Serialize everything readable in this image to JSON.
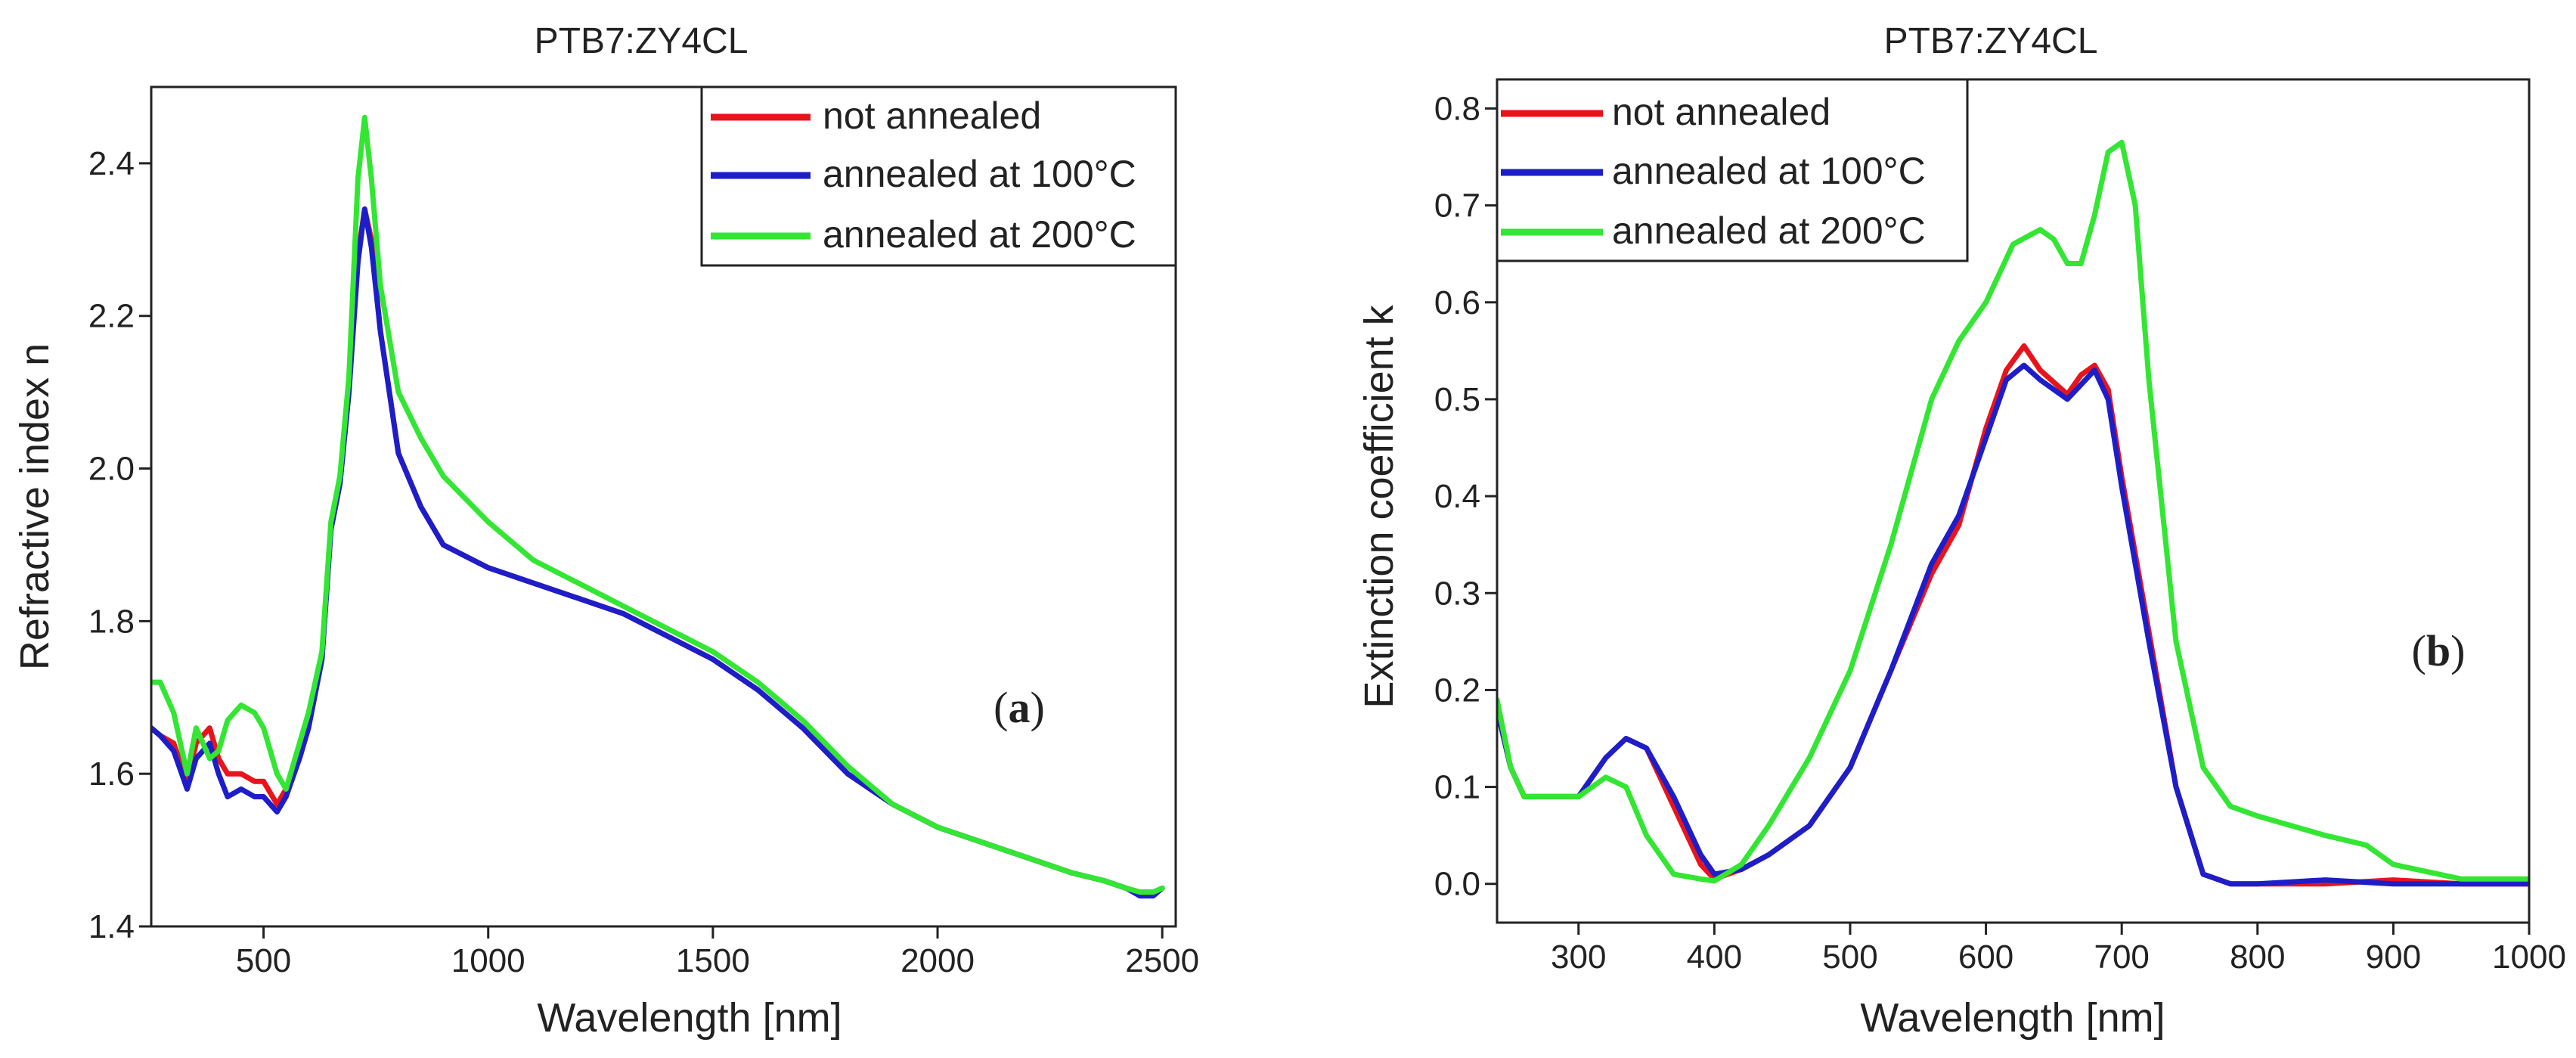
{
  "chart_data": [
    {
      "type": "line",
      "title": "PTB7:ZY4CL",
      "xlabel": "Wavelength [nm]",
      "ylabel": "Refractive index n",
      "xlim": [
        250,
        2530
      ],
      "ylim": [
        1.4,
        2.5
      ],
      "x_ticks": [
        500,
        1000,
        1500,
        2000,
        2500
      ],
      "x_tick_labels": [
        "500",
        "1000",
        "1500",
        "2000",
        "2500"
      ],
      "y_ticks": [
        1.4,
        1.6,
        1.8,
        2.0,
        2.2,
        2.4
      ],
      "y_tick_labels": [
        "1.4",
        "1.6",
        "1.8",
        "2.0",
        "2.2",
        "2.4"
      ],
      "legend_position": "top-right",
      "panel_label": "(a)",
      "panel_letter": "a",
      "series": [
        {
          "name": "not annealed",
          "color": "#e8141c",
          "x": [
            250,
            270,
            300,
            330,
            350,
            380,
            400,
            420,
            450,
            480,
            500,
            530,
            550,
            580,
            600,
            630,
            650,
            670,
            690,
            710,
            725,
            740,
            760,
            800,
            850,
            900,
            1000,
            1100,
            1200,
            1300,
            1400,
            1500,
            1600,
            1700,
            1800,
            1900,
            2000,
            2100,
            2200,
            2300,
            2370,
            2420,
            2450,
            2480,
            2500
          ],
          "values": [
            1.66,
            1.65,
            1.64,
            1.59,
            1.64,
            1.66,
            1.62,
            1.6,
            1.6,
            1.59,
            1.59,
            1.56,
            1.58,
            1.62,
            1.66,
            1.75,
            1.92,
            1.98,
            2.1,
            2.28,
            2.34,
            2.3,
            2.18,
            2.02,
            1.95,
            1.9,
            1.87,
            1.85,
            1.83,
            1.81,
            1.78,
            1.75,
            1.71,
            1.66,
            1.6,
            1.56,
            1.53,
            1.51,
            1.49,
            1.47,
            1.46,
            1.45,
            1.445,
            1.445,
            1.45
          ]
        },
        {
          "name": "annealed at 100°C",
          "color": "#1e1ec8",
          "x": [
            250,
            270,
            300,
            330,
            350,
            380,
            400,
            420,
            450,
            480,
            500,
            530,
            550,
            580,
            600,
            630,
            650,
            670,
            690,
            710,
            725,
            740,
            760,
            800,
            850,
            900,
            1000,
            1100,
            1200,
            1300,
            1400,
            1500,
            1600,
            1700,
            1800,
            1900,
            2000,
            2100,
            2200,
            2300,
            2370,
            2420,
            2450,
            2480,
            2500
          ],
          "values": [
            1.66,
            1.65,
            1.63,
            1.58,
            1.62,
            1.64,
            1.6,
            1.57,
            1.58,
            1.57,
            1.57,
            1.55,
            1.57,
            1.62,
            1.66,
            1.75,
            1.92,
            1.98,
            2.1,
            2.27,
            2.34,
            2.29,
            2.18,
            2.02,
            1.95,
            1.9,
            1.87,
            1.85,
            1.83,
            1.81,
            1.78,
            1.75,
            1.71,
            1.66,
            1.6,
            1.56,
            1.53,
            1.51,
            1.49,
            1.47,
            1.46,
            1.45,
            1.44,
            1.44,
            1.45
          ]
        },
        {
          "name": "annealed at 200°C",
          "color": "#33e633",
          "x": [
            250,
            270,
            300,
            330,
            350,
            380,
            400,
            420,
            450,
            480,
            500,
            530,
            550,
            580,
            600,
            630,
            650,
            670,
            690,
            710,
            725,
            740,
            760,
            800,
            850,
            900,
            1000,
            1100,
            1200,
            1300,
            1400,
            1500,
            1600,
            1700,
            1800,
            1900,
            2000,
            2100,
            2200,
            2300,
            2370,
            2420,
            2450,
            2480,
            2500
          ],
          "values": [
            1.72,
            1.72,
            1.68,
            1.6,
            1.66,
            1.62,
            1.63,
            1.67,
            1.69,
            1.68,
            1.66,
            1.6,
            1.58,
            1.64,
            1.68,
            1.76,
            1.93,
            1.99,
            2.12,
            2.38,
            2.46,
            2.38,
            2.24,
            2.1,
            2.04,
            1.99,
            1.93,
            1.88,
            1.85,
            1.82,
            1.79,
            1.76,
            1.72,
            1.67,
            1.61,
            1.56,
            1.53,
            1.51,
            1.49,
            1.47,
            1.46,
            1.45,
            1.445,
            1.445,
            1.45
          ]
        }
      ]
    },
    {
      "type": "line",
      "title": "PTB7:ZY4CL",
      "xlabel": "Wavelength [nm]",
      "ylabel": "Extinction coefficient k",
      "xlim": [
        240,
        1000
      ],
      "ylim": [
        -0.04,
        0.83
      ],
      "x_ticks": [
        300,
        400,
        500,
        600,
        700,
        800,
        900,
        1000
      ],
      "x_tick_labels": [
        "300",
        "400",
        "500",
        "600",
        "700",
        "800",
        "900",
        "1000"
      ],
      "y_ticks": [
        0.0,
        0.1,
        0.2,
        0.3,
        0.4,
        0.5,
        0.6,
        0.7,
        0.8
      ],
      "y_tick_labels": [
        "0.0",
        "0.1",
        "0.2",
        "0.3",
        "0.4",
        "0.5",
        "0.6",
        "0.7",
        "0.8"
      ],
      "legend_position": "top-left",
      "panel_label": "(b)",
      "panel_letter": "b",
      "series": [
        {
          "name": "not annealed",
          "color": "#e8141c",
          "x": [
            240,
            250,
            260,
            280,
            300,
            320,
            335,
            350,
            370,
            390,
            400,
            420,
            440,
            470,
            500,
            530,
            560,
            580,
            600,
            615,
            628,
            640,
            660,
            670,
            680,
            690,
            700,
            720,
            740,
            760,
            780,
            800,
            850,
            900,
            950,
            1000
          ],
          "values": [
            0.18,
            0.12,
            0.09,
            0.09,
            0.09,
            0.13,
            0.15,
            0.14,
            0.08,
            0.02,
            0.005,
            0.015,
            0.03,
            0.06,
            0.12,
            0.22,
            0.32,
            0.37,
            0.47,
            0.53,
            0.555,
            0.53,
            0.505,
            0.525,
            0.535,
            0.51,
            0.42,
            0.26,
            0.1,
            0.01,
            0.0,
            0.0,
            0.0,
            0.004,
            0.0,
            0.0
          ]
        },
        {
          "name": "annealed at 100°C",
          "color": "#1e1ec8",
          "x": [
            240,
            250,
            260,
            280,
            300,
            320,
            335,
            350,
            370,
            390,
            400,
            420,
            440,
            470,
            500,
            530,
            560,
            580,
            600,
            615,
            628,
            640,
            660,
            670,
            680,
            690,
            700,
            720,
            740,
            760,
            780,
            800,
            850,
            900,
            950,
            1000
          ],
          "values": [
            0.18,
            0.12,
            0.09,
            0.09,
            0.09,
            0.13,
            0.15,
            0.14,
            0.09,
            0.03,
            0.01,
            0.015,
            0.03,
            0.06,
            0.12,
            0.22,
            0.33,
            0.38,
            0.46,
            0.52,
            0.535,
            0.52,
            0.5,
            0.515,
            0.53,
            0.5,
            0.41,
            0.25,
            0.1,
            0.01,
            0.0,
            0.0,
            0.004,
            0.0,
            0.0,
            0.0
          ]
        },
        {
          "name": "annealed at 200°C",
          "color": "#33e633",
          "x": [
            240,
            250,
            260,
            280,
            300,
            310,
            320,
            335,
            350,
            370,
            390,
            400,
            420,
            440,
            470,
            500,
            530,
            560,
            580,
            600,
            620,
            640,
            650,
            660,
            670,
            680,
            690,
            700,
            710,
            720,
            740,
            760,
            780,
            800,
            850,
            880,
            900,
            950,
            1000
          ],
          "values": [
            0.19,
            0.12,
            0.09,
            0.09,
            0.09,
            0.1,
            0.11,
            0.1,
            0.05,
            0.01,
            0.005,
            0.003,
            0.02,
            0.06,
            0.13,
            0.22,
            0.35,
            0.5,
            0.56,
            0.6,
            0.66,
            0.675,
            0.665,
            0.64,
            0.64,
            0.69,
            0.755,
            0.765,
            0.7,
            0.52,
            0.25,
            0.12,
            0.08,
            0.07,
            0.05,
            0.04,
            0.02,
            0.005,
            0.005
          ]
        }
      ]
    }
  ]
}
